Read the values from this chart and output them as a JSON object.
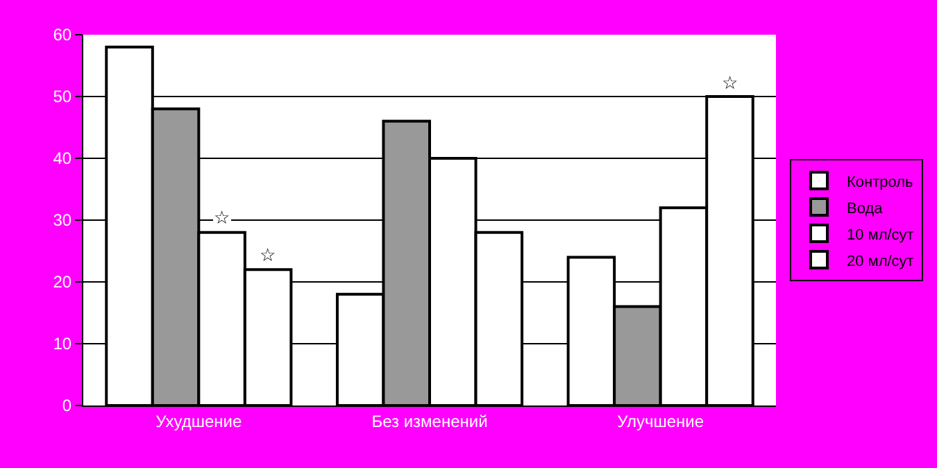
{
  "chart_data": {
    "type": "bar",
    "categories": [
      "Ухудшение",
      "Без изменений",
      "Улучшение"
    ],
    "series": [
      {
        "name": "Контроль",
        "color": "#ffffff",
        "values": [
          58,
          18,
          24
        ]
      },
      {
        "name": "Вода",
        "color": "#999999",
        "values": [
          48,
          46,
          16
        ]
      },
      {
        "name": "10 мл/сут",
        "color": "#ffffff",
        "values": [
          28,
          40,
          32
        ],
        "value_labels": [
          "☆",
          null,
          null
        ]
      },
      {
        "name": "20 мл/сут",
        "color": "#ffffff",
        "values": [
          22,
          28,
          50
        ],
        "value_labels": [
          "☆",
          null,
          "☆"
        ]
      }
    ],
    "ylim": [
      0,
      60
    ],
    "yticks": [
      0,
      10,
      20,
      30,
      40,
      50,
      60
    ],
    "grid": "y",
    "legend": "right"
  }
}
